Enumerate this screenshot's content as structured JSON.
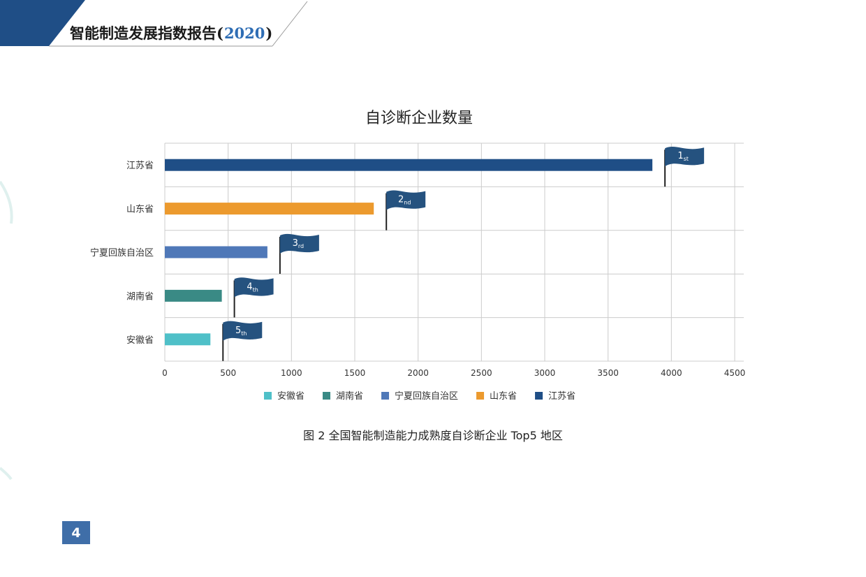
{
  "header": {
    "title_main": "智能制造发展指数报告",
    "open_paren": "(",
    "year": "2020",
    "close_paren": ")"
  },
  "page_number": "4",
  "caption": "图 2 全国智能制造能力成熟度自诊断企业 Top5 地区",
  "colors": {
    "header_band": "#1f4e86",
    "flag": "#25527f",
    "grid": "#cccccc",
    "page_badge": "#3f6ea8"
  },
  "chart_data": {
    "type": "bar",
    "orientation": "horizontal",
    "title": "自诊断企业数量",
    "categories": [
      "江苏省",
      "山东省",
      "宁夏回族自治区",
      "湖南省",
      "安徽省"
    ],
    "values": [
      3850,
      1650,
      810,
      450,
      360
    ],
    "colors": [
      "#1f4e86",
      "#ec9a2e",
      "#4f78b8",
      "#3a8a85",
      "#4fc0c8"
    ],
    "ranks": [
      {
        "num": "1",
        "suffix": "st"
      },
      {
        "num": "2",
        "suffix": "nd"
      },
      {
        "num": "3",
        "suffix": "rd"
      },
      {
        "num": "4",
        "suffix": "th"
      },
      {
        "num": "5",
        "suffix": "th"
      }
    ],
    "xlim": [
      0,
      4500
    ],
    "xticks": [
      "0",
      "500",
      "1000",
      "1500",
      "2000",
      "2500",
      "3000",
      "3500",
      "4000",
      "4500"
    ],
    "grid": true,
    "legend_position": "bottom",
    "legend": [
      {
        "label": "安徽省",
        "color": "#4fc0c8"
      },
      {
        "label": "湖南省",
        "color": "#3a8a85"
      },
      {
        "label": "宁夏回族自治区",
        "color": "#4f78b8"
      },
      {
        "label": "山东省",
        "color": "#ec9a2e"
      },
      {
        "label": "江苏省",
        "color": "#1f4e86"
      }
    ]
  }
}
